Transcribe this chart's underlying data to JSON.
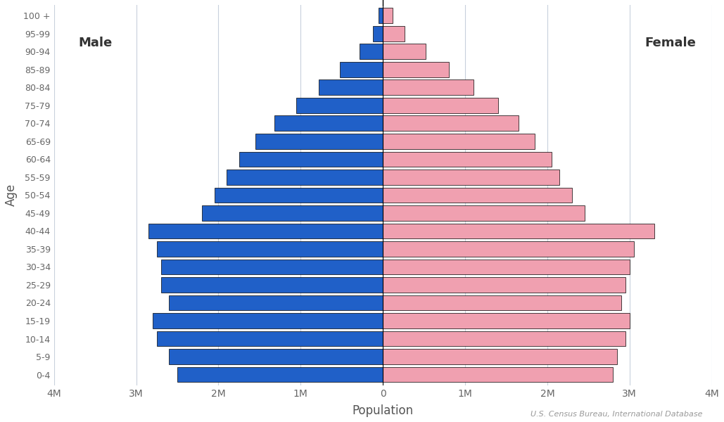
{
  "age_groups": [
    "0-4",
    "5-9",
    "10-14",
    "15-19",
    "20-24",
    "25-29",
    "30-34",
    "35-39",
    "40-44",
    "45-49",
    "50-54",
    "55-59",
    "60-64",
    "65-69",
    "70-74",
    "75-79",
    "80-84",
    "85-89",
    "90-94",
    "95-99",
    "100 +"
  ],
  "male": [
    2500000,
    2600000,
    2750000,
    2800000,
    2600000,
    2700000,
    2700000,
    2750000,
    2850000,
    2200000,
    2050000,
    1900000,
    1750000,
    1550000,
    1320000,
    1050000,
    780000,
    520000,
    280000,
    120000,
    50000
  ],
  "female": [
    2800000,
    2850000,
    2950000,
    3000000,
    2900000,
    2950000,
    3000000,
    3050000,
    3300000,
    2450000,
    2300000,
    2150000,
    2050000,
    1850000,
    1650000,
    1400000,
    1100000,
    800000,
    520000,
    260000,
    120000
  ],
  "male_color": "#2060c8",
  "female_color": "#f0a0b0",
  "edge_color": "#000000",
  "background_color": "#ffffff",
  "grid_color": "#c8d0dc",
  "xlabel": "Population",
  "ylabel": "Age",
  "xlim": 4000000,
  "male_label": "Male",
  "female_label": "Female",
  "source_text": "U.S. Census Bureau, International Database",
  "tick_labels": [
    "4M",
    "3M",
    "2M",
    "1M",
    "0",
    "1M",
    "2M",
    "3M",
    "4M"
  ],
  "tick_values": [
    -4000000,
    -3000000,
    -2000000,
    -1000000,
    0,
    1000000,
    2000000,
    3000000,
    4000000
  ]
}
